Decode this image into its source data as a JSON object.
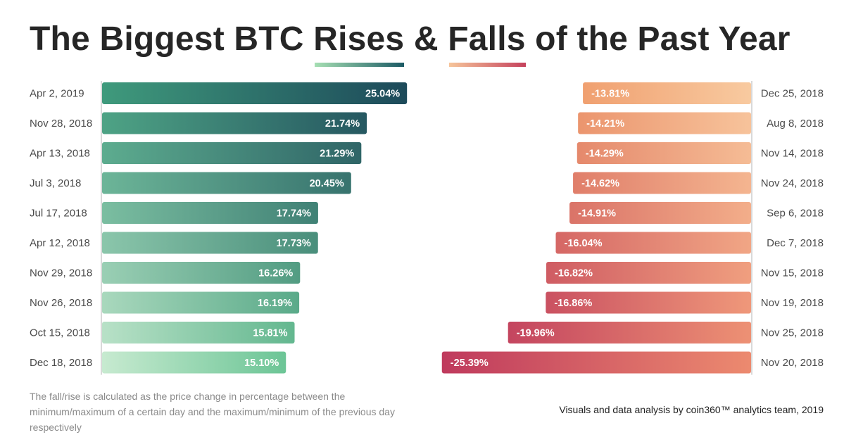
{
  "title": {
    "prefix": "The Biggest BTC ",
    "rises": "Rises",
    "amp": " & ",
    "falls": "Falls",
    "suffix": " of the Past Year"
  },
  "footnote": "The fall/rise is calculated as the price change in percentage between the minimum/maximum of a certain day and the maximum/minimum of the previous day respectively",
  "credit": "Visuals and data analysis by coin360™ analytics team, 2019",
  "colors": {
    "rise_light": "#c7ead0",
    "rise_dark": "#1d4a5a",
    "fall_light": "#f8caa0",
    "fall_dark": "#bf3a5d",
    "axis": "#d9d9d9"
  },
  "chart_data": [
    {
      "type": "bar",
      "title": "Rises",
      "categories": [
        "Apr 2, 2019",
        "Nov 28, 2018",
        "Apr 13, 2018",
        "Jul 3, 2018",
        "Jul 17, 2018",
        "Apr 12, 2018",
        "Nov 29, 2018",
        "Nov 26, 2018",
        "Oct 15, 2018",
        "Dec 18, 2018"
      ],
      "values": [
        25.04,
        21.74,
        21.29,
        20.45,
        17.74,
        17.73,
        16.26,
        16.19,
        15.81,
        15.1
      ],
      "labels": [
        "25.04%",
        "21.74%",
        "21.29%",
        "20.45%",
        "17.74%",
        "17.73%",
        "16.26%",
        "16.19%",
        "15.81%",
        "15.10%"
      ],
      "unit": "%",
      "orientation": "horizontal",
      "grid": false,
      "legend": "none"
    },
    {
      "type": "bar",
      "title": "Falls",
      "categories": [
        "Dec 25, 2018",
        "Aug 8, 2018",
        "Nov 14, 2018",
        "Nov 24, 2018",
        "Sep 6, 2018",
        "Dec 7, 2018",
        "Nov 15, 2018",
        "Nov 19, 2018",
        "Nov 25, 2018",
        "Nov 20, 2018"
      ],
      "values": [
        -13.81,
        -14.21,
        -14.29,
        -14.62,
        -14.91,
        -16.04,
        -16.82,
        -16.86,
        -19.96,
        -25.39
      ],
      "labels": [
        "-13.81%",
        "-14.21%",
        "-14.29%",
        "-14.62%",
        "-14.91%",
        "-16.04%",
        "-16.82%",
        "-16.86%",
        "-19.96%",
        "-25.39%"
      ],
      "unit": "%",
      "orientation": "horizontal",
      "grid": false,
      "legend": "none"
    }
  ]
}
